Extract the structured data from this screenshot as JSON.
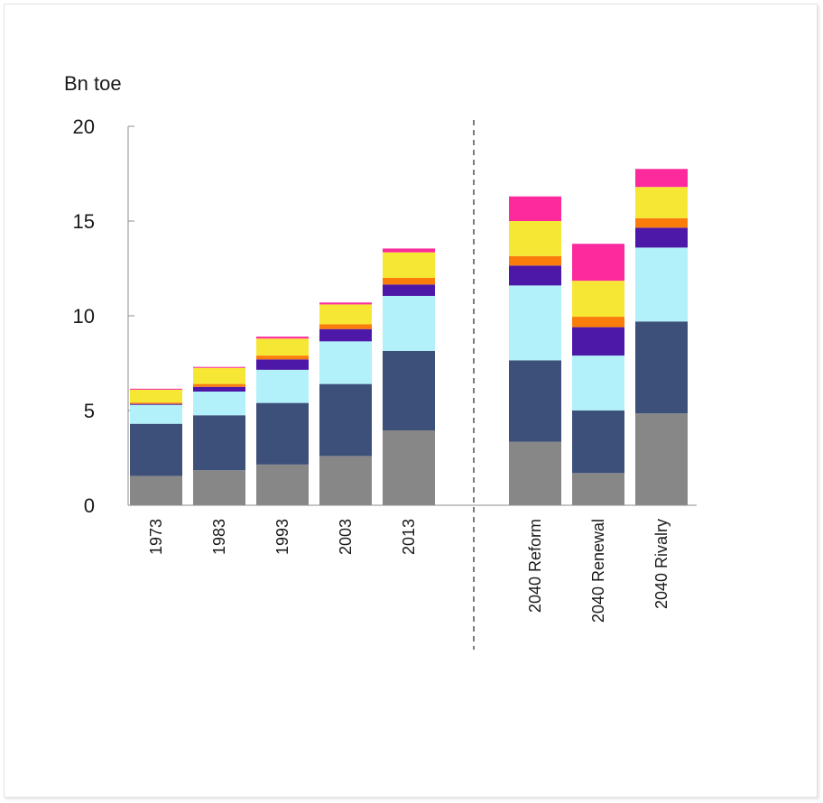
{
  "chart_data": {
    "type": "bar",
    "stacked": true,
    "unit_label": "Bn toe",
    "ylim": [
      0,
      20
    ],
    "yticks": [
      0,
      5,
      10,
      15,
      20
    ],
    "grid": false,
    "categories": [
      "1973",
      "1983",
      "1993",
      "2003",
      "2013",
      "2040 Reform",
      "2040 Renewal",
      "2040 Rivalry"
    ],
    "divider_after_category": "2013",
    "series": [
      {
        "color": "#878787",
        "values": [
          1.55,
          1.85,
          2.15,
          2.6,
          3.95,
          3.35,
          1.7,
          4.85
        ]
      },
      {
        "color": "#3d5079",
        "values": [
          2.75,
          2.9,
          3.25,
          3.8,
          4.2,
          4.3,
          3.3,
          4.85
        ]
      },
      {
        "color": "#b2f1fa",
        "values": [
          1.0,
          1.25,
          1.75,
          2.25,
          2.9,
          3.95,
          2.9,
          3.9
        ]
      },
      {
        "color": "#4d18a8",
        "values": [
          0.05,
          0.25,
          0.55,
          0.65,
          0.6,
          1.05,
          1.5,
          1.05
        ]
      },
      {
        "color": "#fa7d0c",
        "values": [
          0.07,
          0.15,
          0.2,
          0.25,
          0.35,
          0.5,
          0.55,
          0.5
        ]
      },
      {
        "color": "#f7e735",
        "values": [
          0.68,
          0.85,
          0.9,
          1.05,
          1.35,
          1.85,
          1.9,
          1.65
        ]
      },
      {
        "color": "#fc2a9c",
        "values": [
          0.05,
          0.05,
          0.1,
          0.1,
          0.2,
          1.3,
          1.95,
          0.95
        ]
      }
    ]
  }
}
